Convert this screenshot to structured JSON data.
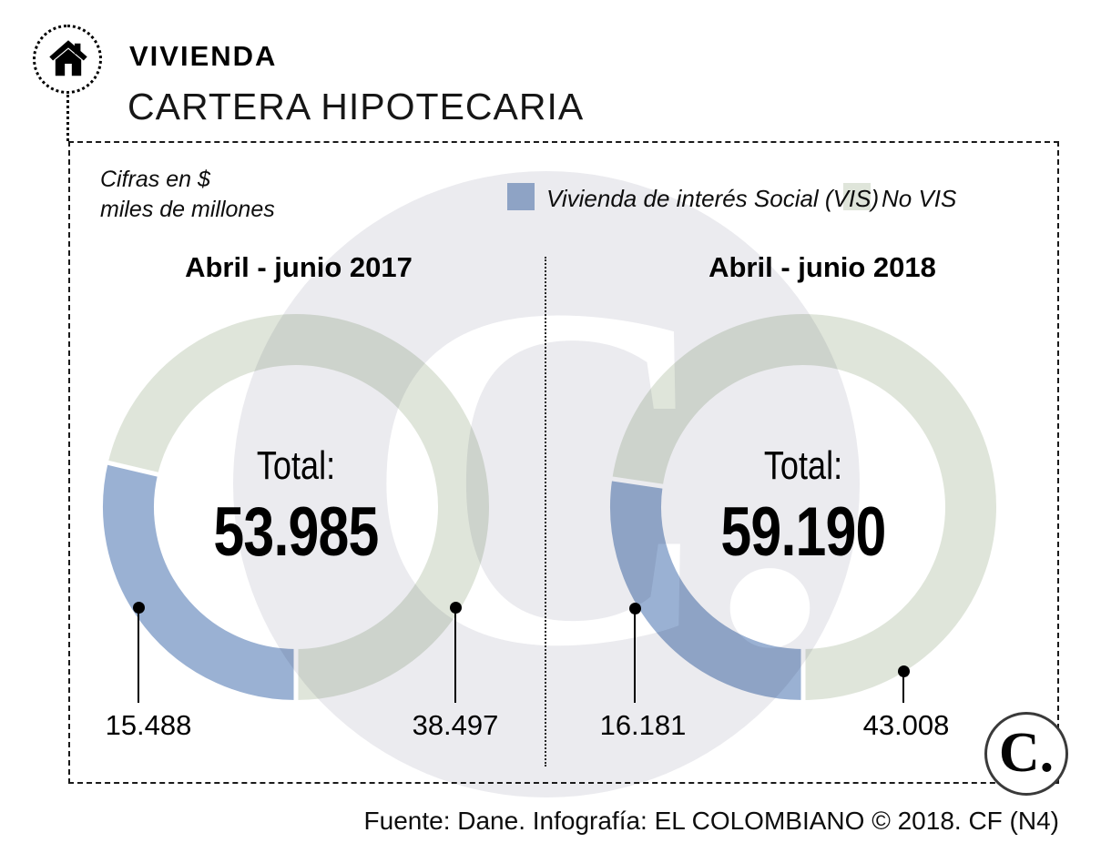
{
  "header": {
    "kicker": "VIVIENDA",
    "title": "CARTERA HIPOTECARIA"
  },
  "note": {
    "line1": "Cifras en $",
    "line2": "miles de millones"
  },
  "legend": {
    "vis": "Vivienda de interés Social (VIS)",
    "novis": "No VIS"
  },
  "colors": {
    "vis_blue": "#9ab1d3",
    "novis_green": "#dfe5da",
    "watermark_gray": "#ebebef"
  },
  "chart_data": [
    {
      "type": "pie",
      "variant": "donut",
      "title": "Abril - junio 2017",
      "center_label": "Total:",
      "total": 53985,
      "total_display": "53.985",
      "units": "$ miles de millones",
      "segments": [
        {
          "name": "Vivienda de interés Social (VIS)",
          "value": 15488,
          "display": "15.488",
          "color": "#9ab1d3"
        },
        {
          "name": "No VIS",
          "value": 38497,
          "display": "38.497",
          "color": "#dfe5da"
        }
      ]
    },
    {
      "type": "pie",
      "variant": "donut",
      "title": "Abril - junio 2018",
      "center_label": "Total:",
      "total": 59190,
      "total_display": "59.190",
      "units": "$ miles de millones",
      "segments": [
        {
          "name": "Vivienda de interés Social (VIS)",
          "value": 16181,
          "display": "16.181",
          "color": "#9ab1d3"
        },
        {
          "name": "No VIS",
          "value": 43008,
          "display": "43.008",
          "color": "#dfe5da"
        }
      ]
    }
  ],
  "watermark": {
    "text": "C."
  },
  "branding": {
    "logo_text": "C."
  },
  "footer": {
    "credit": "Fuente: Dane. Infografía: EL COLOMBIANO © 2018. CF (N4)"
  }
}
